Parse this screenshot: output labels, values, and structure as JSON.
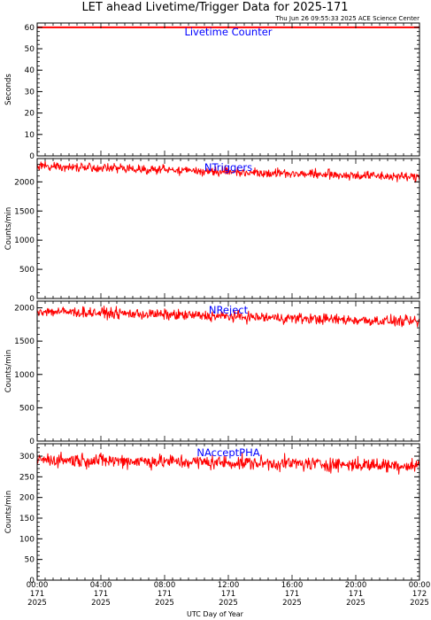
{
  "header": {
    "title": "LET ahead Livetime/Trigger Data for 2025-171",
    "stamp": "Thu Jun 26 09:55:33 2025 ACE Science Center"
  },
  "colors": {
    "data": "#ff0000",
    "label": "#0000ff",
    "axes": "#000000",
    "background": "#ffffff"
  },
  "chart_data": [
    {
      "type": "line",
      "panel_label": "Livetime Counter",
      "ylabel": "Seconds",
      "ylim": [
        0,
        62
      ],
      "yticks": [
        0,
        10,
        20,
        30,
        40,
        50,
        60
      ],
      "xlim": [
        0,
        24
      ],
      "series": [
        {
          "baseline": 60,
          "start": 60,
          "end": 60,
          "noise": 0
        }
      ]
    },
    {
      "type": "line",
      "panel_label": "NTriggers",
      "ylabel": "Counts/min",
      "ylim": [
        0,
        2400
      ],
      "yticks": [
        0,
        500,
        1000,
        1500,
        2000
      ],
      "xlim": [
        0,
        24
      ],
      "series": [
        {
          "start": 2270,
          "end": 2080,
          "noise": 60
        }
      ]
    },
    {
      "type": "line",
      "panel_label": "NReject",
      "ylabel": "Counts/min",
      "ylim": [
        0,
        2100
      ],
      "yticks": [
        0,
        500,
        1000,
        1500,
        2000
      ],
      "xlim": [
        0,
        24
      ],
      "series": [
        {
          "start": 1950,
          "end": 1790,
          "noise": 60
        }
      ]
    },
    {
      "type": "line",
      "panel_label": "NAcceptPHA",
      "ylabel": "Counts/min",
      "ylim": [
        0,
        330
      ],
      "yticks": [
        0,
        50,
        100,
        150,
        200,
        250,
        300
      ],
      "xlim": [
        0,
        24
      ],
      "series": [
        {
          "start": 292,
          "end": 277,
          "noise": 13
        }
      ]
    }
  ],
  "xaxis": {
    "label": "UTC Day of Year",
    "ticks": [
      {
        "hour": 0,
        "time": "00:00",
        "doy": "171",
        "year": "2025"
      },
      {
        "hour": 4,
        "time": "04:00",
        "doy": "171",
        "year": "2025"
      },
      {
        "hour": 8,
        "time": "08:00",
        "doy": "171",
        "year": "2025"
      },
      {
        "hour": 12,
        "time": "12:00",
        "doy": "171",
        "year": "2025"
      },
      {
        "hour": 16,
        "time": "16:00",
        "doy": "171",
        "year": "2025"
      },
      {
        "hour": 20,
        "time": "20:00",
        "doy": "171",
        "year": "2025"
      },
      {
        "hour": 24,
        "time": "00:00",
        "doy": "172",
        "year": "2025"
      }
    ]
  }
}
